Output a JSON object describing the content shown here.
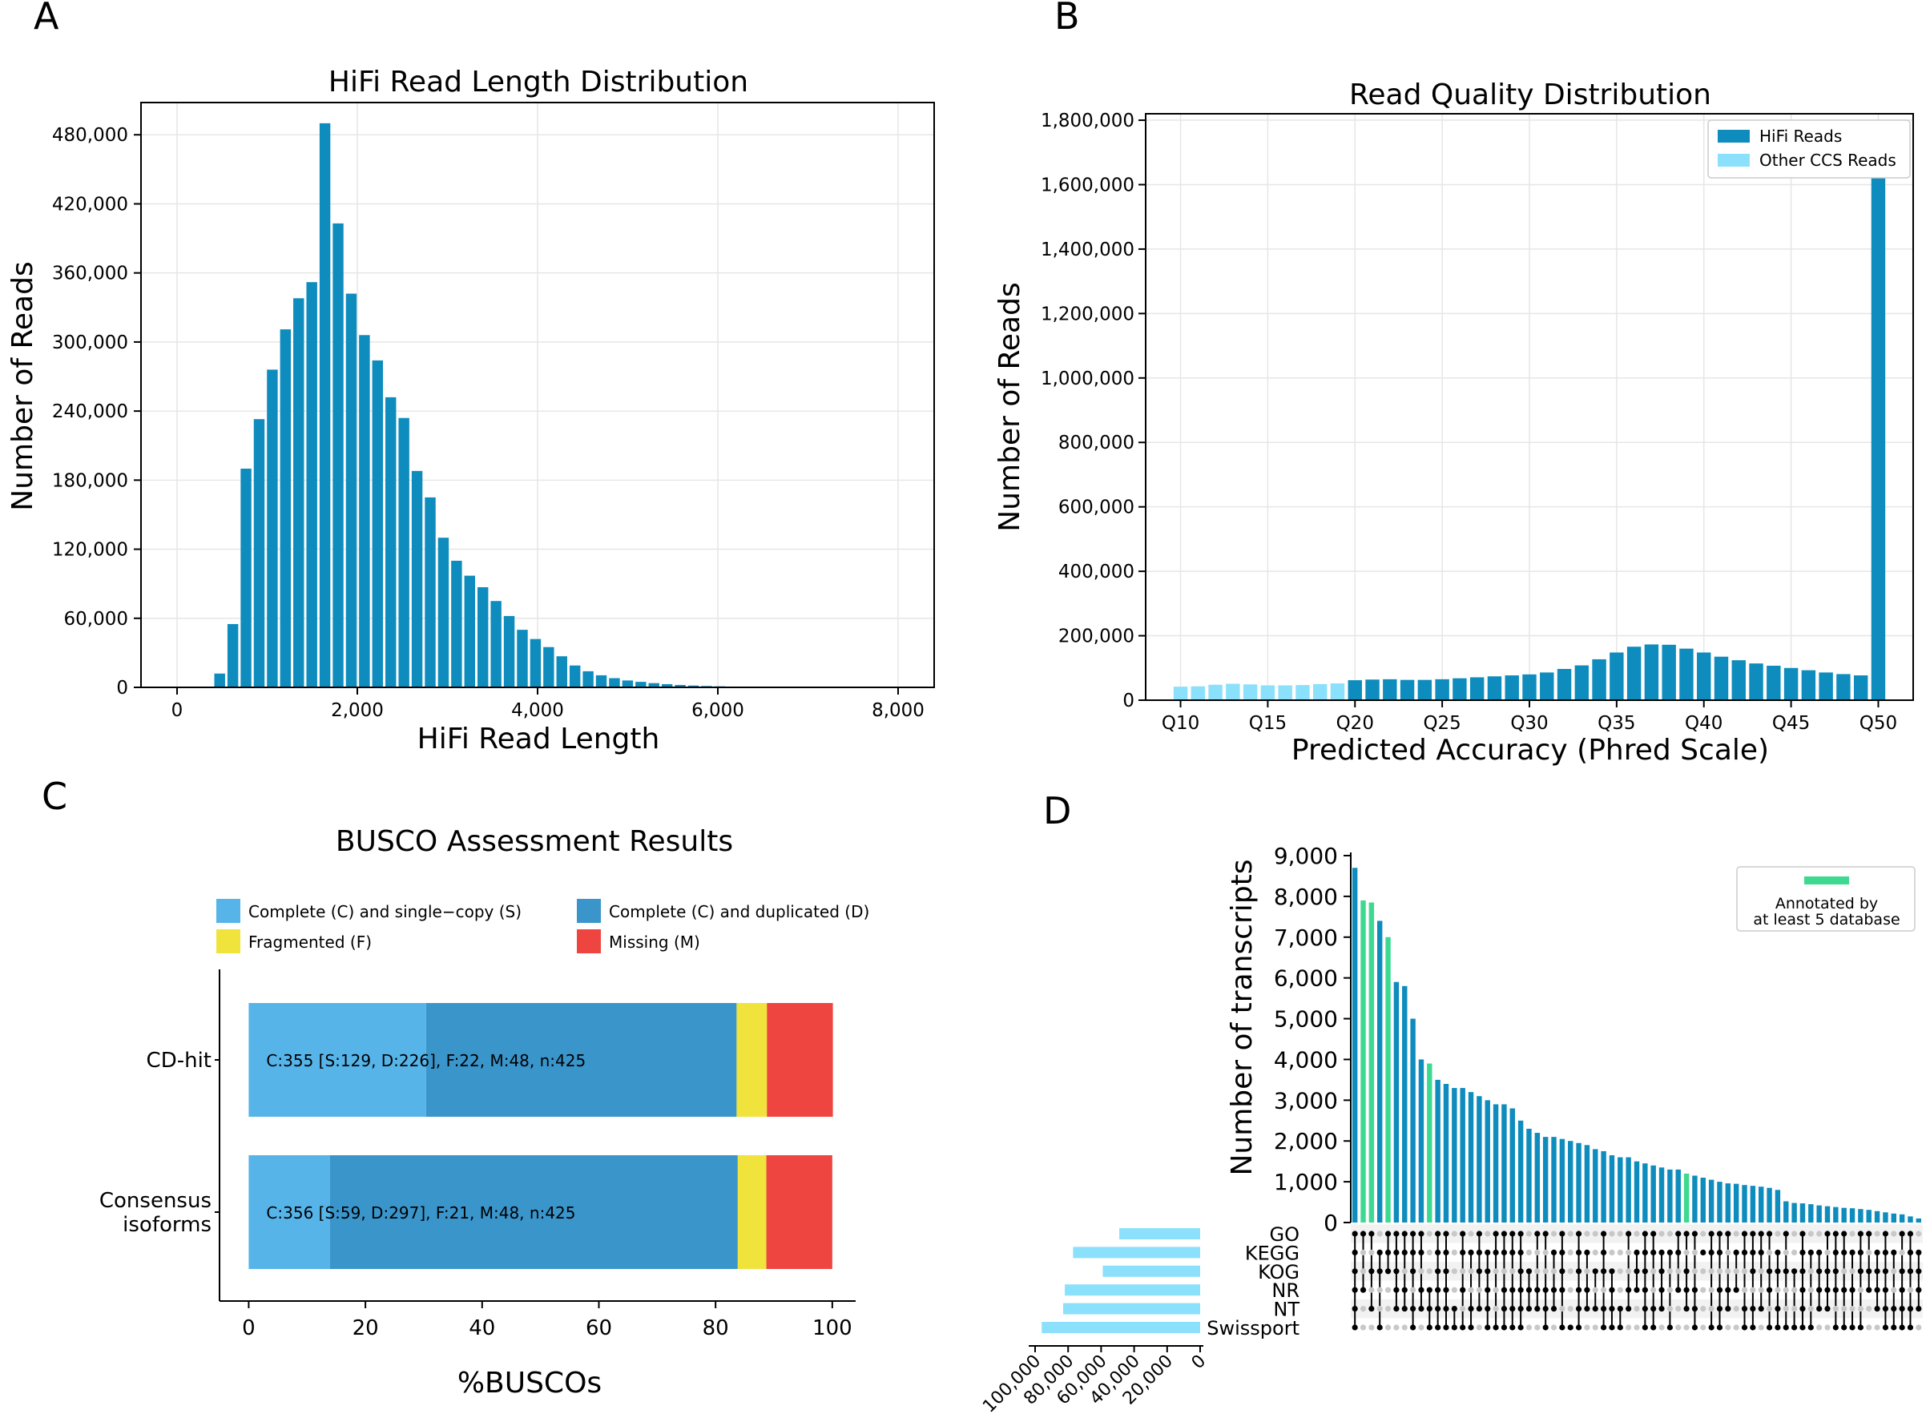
{
  "panels": {
    "a": "A",
    "b": "B",
    "c": "C",
    "d": "D"
  },
  "colors": {
    "hifi": "#0e8cbd",
    "other_ccs": "#8be0fb",
    "busco_single": "#56b4e9",
    "busco_dup": "#3a95cb",
    "busco_frag": "#efe33c",
    "busco_missing": "#ef4540",
    "upset_bar": "#0e8cbd",
    "upset_highlight": "#3ed990",
    "db_bar": "#8be0fb",
    "grid": "#e6e6e6"
  },
  "chart_data": [
    {
      "id": "A",
      "type": "bar",
      "title": "HiFi Read Length Distribution",
      "xlabel": "HiFi Read Length",
      "ylabel": "Number of Reads",
      "xlim": [
        -400,
        8400
      ],
      "ylim": [
        0,
        508000
      ],
      "grid": true,
      "xticks": [
        0,
        2000,
        4000,
        6000,
        8000
      ],
      "xtick_labels": [
        "0",
        "2,000",
        "4,000",
        "6,000",
        "8,000"
      ],
      "yticks": [
        0,
        60000,
        120000,
        180000,
        240000,
        300000,
        360000,
        420000,
        480000
      ],
      "ytick_labels": [
        "0",
        "60,000",
        "120,000",
        "180,000",
        "240,000",
        "300,000",
        "360,000",
        "420,000",
        "480,000"
      ],
      "bin_width": 146,
      "bins": [
        400,
        546,
        692,
        838,
        984,
        1130,
        1276,
        1422,
        1568,
        1714,
        1860,
        2006,
        2152,
        2298,
        2444,
        2590,
        2736,
        2882,
        3028,
        3174,
        3320,
        3466,
        3612,
        3758,
        3904,
        4050,
        4196,
        4342,
        4488,
        4634,
        4780,
        4926,
        5072,
        5218,
        5364,
        5510,
        5656,
        5802,
        5948,
        6094,
        6240,
        6386,
        6532,
        6678
      ],
      "values": [
        12000,
        55000,
        190000,
        233000,
        276000,
        311000,
        338000,
        352000,
        490000,
        403000,
        342000,
        306000,
        284000,
        252000,
        234000,
        188000,
        165000,
        130000,
        110000,
        97000,
        87000,
        75000,
        62000,
        50000,
        42000,
        35000,
        27000,
        19000,
        14000,
        10500,
        8000,
        6000,
        4800,
        3700,
        2800,
        2100,
        1600,
        1200,
        900,
        700,
        500,
        400,
        300,
        200
      ]
    },
    {
      "id": "B",
      "type": "bar",
      "title": "Read Quality Distribution",
      "xlabel": "Predicted Accuracy (Phred Scale)",
      "ylabel": "Number of Reads",
      "xlim": [
        8,
        52
      ],
      "ylim": [
        0,
        1820000
      ],
      "grid": true,
      "legend_position": "top-right",
      "xticks": [
        10,
        15,
        20,
        25,
        30,
        35,
        40,
        45,
        50
      ],
      "xtick_labels": [
        "Q10",
        "Q15",
        "Q20",
        "Q25",
        "Q30",
        "Q35",
        "Q40",
        "Q45",
        "Q50"
      ],
      "yticks": [
        0,
        200000,
        400000,
        600000,
        800000,
        1000000,
        1200000,
        1400000,
        1600000,
        1800000
      ],
      "ytick_labels": [
        "0",
        "200,000",
        "400,000",
        "600,000",
        "800,000",
        "1,000,000",
        "1,200,000",
        "1,400,000",
        "1,600,000",
        "1,800,000"
      ],
      "series": [
        {
          "name": "HiFi Reads",
          "x": [
            20,
            21,
            22,
            23,
            24,
            25,
            26,
            27,
            28,
            29,
            30,
            31,
            32,
            33,
            34,
            35,
            36,
            37,
            38,
            39,
            40,
            41,
            42,
            43,
            44,
            45,
            46,
            47,
            48,
            49,
            50
          ],
          "values": [
            62000,
            64000,
            65000,
            63000,
            63000,
            65000,
            68000,
            71000,
            74000,
            77000,
            80000,
            86000,
            97000,
            108000,
            127000,
            148000,
            166000,
            173000,
            172000,
            160000,
            148000,
            135000,
            124000,
            114000,
            107000,
            100000,
            93000,
            86000,
            81000,
            77000,
            1720000
          ]
        },
        {
          "name": "Other CCS Reads",
          "x": [
            10,
            11,
            12,
            13,
            14,
            15,
            16,
            17,
            18,
            19
          ],
          "values": [
            42000,
            43000,
            48000,
            51000,
            49000,
            46000,
            46000,
            47000,
            50000,
            52000
          ]
        }
      ]
    },
    {
      "id": "C",
      "type": "bar",
      "orientation": "horizontal",
      "stacked": true,
      "title": "BUSCO Assessment Results",
      "xlabel": "%BUSCOs",
      "xlim": [
        -5,
        104
      ],
      "xticks": [
        0,
        20,
        40,
        60,
        80,
        100
      ],
      "xtick_labels": [
        "0",
        "20",
        "40",
        "60",
        "80",
        "100"
      ],
      "legend_position": "top",
      "categories": [
        "CD-hit",
        "Consensus isoforms"
      ],
      "category_lines": [
        [
          "CD-hit"
        ],
        [
          "Consensus",
          "isoforms"
        ]
      ],
      "series": [
        {
          "name": "Complete (C) and single−copy (S)",
          "values": [
            30.4,
            13.9
          ]
        },
        {
          "name": "Complete (C) and duplicated (D)",
          "values": [
            53.2,
            69.9
          ]
        },
        {
          "name": "Fragmented (F)",
          "values": [
            5.2,
            4.9
          ]
        },
        {
          "name": "Missing (M)",
          "values": [
            11.3,
            11.3
          ]
        }
      ],
      "bar_labels": [
        "C:355 [S:129, D:226], F:22, M:48, n:425",
        "C:356 [S:59, D:297], F:21, M:48, n:425"
      ]
    },
    {
      "id": "D",
      "type": "bar",
      "subtype": "upset",
      "ylabel": "Number of transcripts",
      "ylim": [
        0,
        9000
      ],
      "yticks": [
        0,
        1000,
        2000,
        3000,
        4000,
        5000,
        6000,
        7000,
        8000,
        9000
      ],
      "ytick_labels": [
        "0",
        "1,000",
        "2,000",
        "3,000",
        "4,000",
        "5,000",
        "6,000",
        "7,000",
        "8,000",
        "9,000"
      ],
      "legend_position": "top-right",
      "legend_label": [
        "Annotated by",
        "at least 5 database"
      ],
      "sets": [
        "GO",
        "KEGG",
        "KOG",
        "NR",
        "NT",
        "Swissport"
      ],
      "set_sizes": [
        49000,
        77000,
        59000,
        82000,
        83000,
        96000
      ],
      "set_size_ticks": [
        100000,
        80000,
        60000,
        40000,
        20000,
        0
      ],
      "set_size_tick_labels": [
        "100,000",
        "80,000",
        "60,000",
        "40,000",
        "20,000",
        "0"
      ],
      "intersection_sizes": [
        8700,
        7900,
        7850,
        7400,
        7000,
        5900,
        5800,
        5000,
        4000,
        3900,
        3500,
        3400,
        3300,
        3300,
        3200,
        3100,
        3000,
        2900,
        2900,
        2800,
        2500,
        2300,
        2200,
        2100,
        2100,
        2050,
        2000,
        1950,
        1900,
        1800,
        1750,
        1650,
        1600,
        1600,
        1500,
        1450,
        1400,
        1350,
        1300,
        1300,
        1200,
        1150,
        1100,
        1050,
        1000,
        960,
        950,
        920,
        900,
        880,
        850,
        800,
        520,
        480,
        470,
        450,
        420,
        400,
        380,
        360,
        350,
        330,
        310,
        280,
        250,
        220,
        200,
        150,
        100
      ],
      "highlighted": [
        1,
        2,
        4,
        9,
        40
      ]
    }
  ]
}
